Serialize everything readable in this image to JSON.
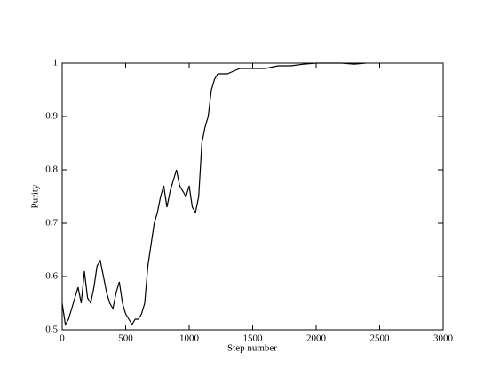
{
  "chart_data": {
    "type": "line",
    "x_label": "Step number",
    "y_label": "Purity",
    "x": [
      0,
      25,
      50,
      75,
      100,
      125,
      150,
      175,
      200,
      225,
      250,
      275,
      300,
      325,
      350,
      375,
      400,
      425,
      450,
      475,
      500,
      525,
      550,
      575,
      600,
      625,
      650,
      675,
      700,
      725,
      750,
      775,
      800,
      825,
      850,
      875,
      900,
      925,
      950,
      975,
      1000,
      1025,
      1050,
      1075,
      1100,
      1125,
      1150,
      1175,
      1200,
      1225,
      1250,
      1300,
      1350,
      1400,
      1500,
      1600,
      1700,
      1800,
      1900,
      2000,
      2100,
      2200,
      2300,
      2390
    ],
    "series": [
      {
        "name": "Purity",
        "color": "#000000",
        "values": [
          0.55,
          0.51,
          0.52,
          0.54,
          0.56,
          0.58,
          0.55,
          0.61,
          0.56,
          0.55,
          0.58,
          0.62,
          0.63,
          0.6,
          0.57,
          0.55,
          0.54,
          0.57,
          0.59,
          0.55,
          0.53,
          0.52,
          0.51,
          0.52,
          0.52,
          0.53,
          0.55,
          0.62,
          0.66,
          0.7,
          0.72,
          0.75,
          0.77,
          0.73,
          0.76,
          0.78,
          0.8,
          0.77,
          0.76,
          0.75,
          0.77,
          0.73,
          0.72,
          0.75,
          0.85,
          0.88,
          0.9,
          0.95,
          0.97,
          0.98,
          0.98,
          0.98,
          0.985,
          0.99,
          0.99,
          0.99,
          0.995,
          0.995,
          0.998,
          1.0,
          1.0,
          1.0,
          0.998,
          1.0
        ]
      }
    ],
    "xlim": [
      0,
      3000
    ],
    "xticks": [
      0,
      500,
      1000,
      1500,
      2000,
      2500,
      3000
    ],
    "ylim": [
      0.5,
      1
    ],
    "yticks": [
      0.5,
      0.6,
      0.7,
      0.8,
      0.9,
      1
    ]
  }
}
